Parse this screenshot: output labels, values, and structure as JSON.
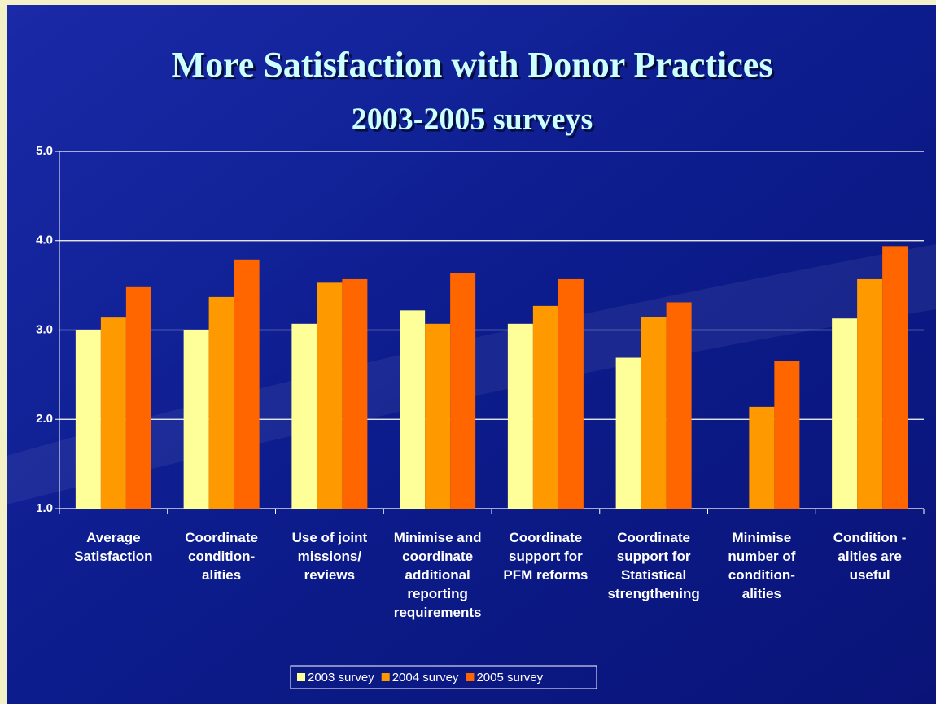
{
  "chart_data": {
    "type": "bar",
    "title": "More Satisfaction with Donor Practices",
    "subtitle": "2003-2005 surveys",
    "categories": [
      "Average\nSatisfaction",
      "Coordinate\ncondition-\nalities",
      "Use of joint\nmissions/\nreviews",
      "Minimise and\ncoordinate\nadditional\nreporting\nrequirements",
      "Coordinate\nsupport for\nPFM reforms",
      "Coordinate\nsupport for\nStatistical\nstrengthening",
      "Minimise\nnumber of\ncondition-\nalities",
      "Condition -\nalities are\nuseful"
    ],
    "series": [
      {
        "name": "2003 survey",
        "color": "#ffff99",
        "values": [
          3.0,
          3.0,
          3.07,
          3.22,
          3.07,
          2.69,
          null,
          3.13
        ]
      },
      {
        "name": "2004 survey",
        "color": "#ff9900",
        "values": [
          3.14,
          3.37,
          3.53,
          3.07,
          3.27,
          3.15,
          2.14,
          3.57
        ]
      },
      {
        "name": "2005 survey",
        "color": "#ff6600",
        "values": [
          3.48,
          3.79,
          3.57,
          3.64,
          3.57,
          3.31,
          2.65,
          3.94
        ]
      }
    ],
    "ylim": [
      1,
      5
    ],
    "yticks": [
      {
        "value": 1,
        "label": "1.0"
      },
      {
        "value": 2,
        "label": "2.0"
      },
      {
        "value": 3,
        "label": "3.0"
      },
      {
        "value": 4,
        "label": "4.0"
      },
      {
        "value": 5,
        "label": "5.0"
      }
    ],
    "grid": true,
    "legend": "bottom"
  }
}
